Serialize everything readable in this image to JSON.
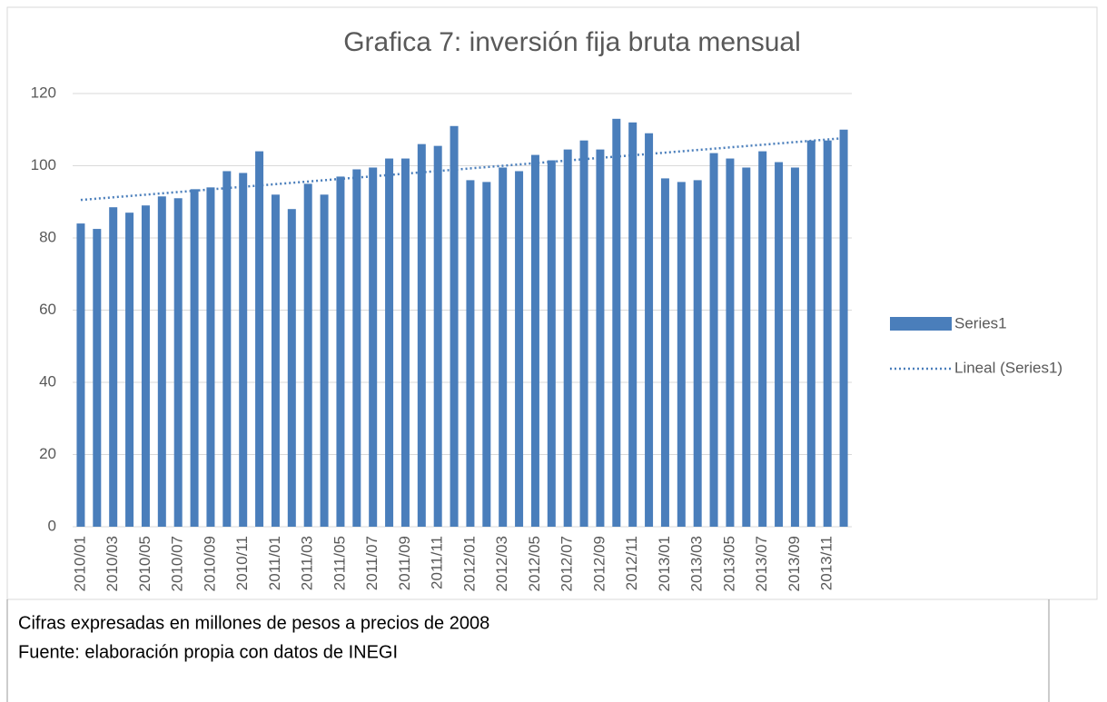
{
  "chart_data": {
    "type": "bar",
    "title": "Grafica 7: inversión fija bruta mensual",
    "categories": [
      "2010/01",
      null,
      "2010/03",
      null,
      "2010/05",
      null,
      "2010/07",
      null,
      "2010/09",
      null,
      "2010/11",
      null,
      "2011/01",
      null,
      "2011/03",
      null,
      "2011/05",
      null,
      "2011/07",
      null,
      "2011/09",
      null,
      "2011/11",
      null,
      "2012/01",
      null,
      "2012/03",
      null,
      "2012/05",
      null,
      "2012/07",
      null,
      "2012/09",
      null,
      "2012/11",
      null,
      "2013/01",
      null,
      "2013/03",
      null,
      "2013/05",
      null,
      "2013/07",
      null,
      "2013/09",
      null,
      "2013/11",
      null
    ],
    "series": [
      {
        "name": "Series1",
        "color": "#4a7ebb",
        "values": [
          84,
          82.5,
          88.5,
          87,
          89,
          91.5,
          91,
          93.5,
          94,
          98.5,
          98,
          104,
          92,
          88,
          95,
          92,
          97,
          99,
          99.5,
          102,
          102,
          106,
          105.5,
          111,
          96,
          95.5,
          99.5,
          98.5,
          103,
          101.5,
          104.5,
          107,
          104.5,
          113,
          112,
          109,
          96.5,
          95.5,
          96,
          103.5,
          102,
          99.5,
          104,
          101,
          99.5,
          107,
          107,
          110
        ]
      }
    ],
    "trendline": {
      "name": "Lineal (Series1)",
      "type": "linear"
    },
    "ylim": [
      0,
      120
    ],
    "yticks": [
      0,
      20,
      40,
      60,
      80,
      100,
      120
    ],
    "grid": true,
    "legend": "right",
    "notes": [
      "Cifras expresadas en millones de pesos a precios de 2008",
      "Fuente: elaboración propia con datos de INEGI"
    ]
  }
}
